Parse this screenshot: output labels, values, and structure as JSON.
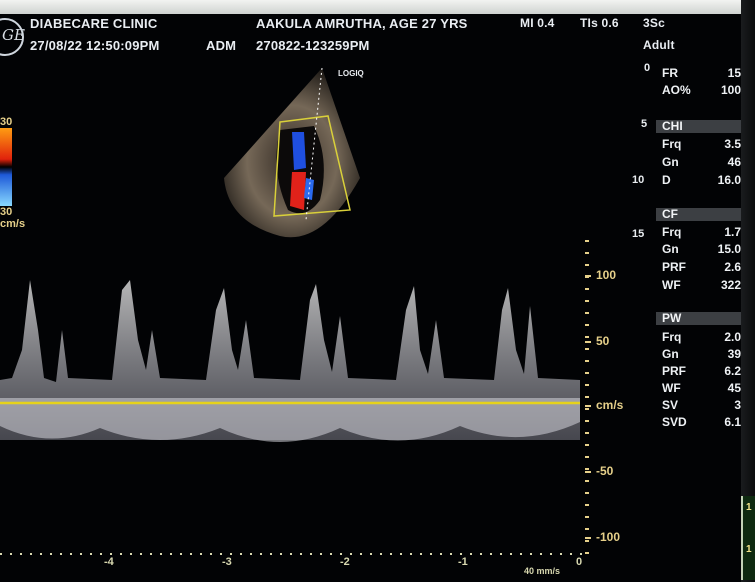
{
  "header": {
    "clinic": "DIABECARE CLINIC",
    "patient": "AAKULA AMRUTHA, AGE 27 YRS",
    "mi": "MI 0.4",
    "tis": "TIs 0.6",
    "probe": "3Sc",
    "datetime": "27/08/22 12:50:09PM",
    "operator": "ADM",
    "exam_id": "270822-123259PM",
    "preset": "Adult",
    "logo_text": "GE"
  },
  "depth_marks": [
    "0",
    "5",
    "10",
    "15"
  ],
  "params": {
    "general": [
      {
        "label": "FR",
        "value": "15"
      },
      {
        "label": "AO%",
        "value": "100"
      }
    ],
    "chi": {
      "title": "CHI",
      "items": [
        {
          "label": "Frq",
          "value": "3.5"
        },
        {
          "label": "Gn",
          "value": "46"
        },
        {
          "label": "D",
          "value": "16.0"
        }
      ]
    },
    "cf": {
      "title": "CF",
      "items": [
        {
          "label": "Frq",
          "value": "1.7"
        },
        {
          "label": "Gn",
          "value": "15.0"
        },
        {
          "label": "PRF",
          "value": "2.6"
        },
        {
          "label": "WF",
          "value": "322"
        }
      ]
    },
    "pw": {
      "title": "PW",
      "items": [
        {
          "label": "Frq",
          "value": "2.0"
        },
        {
          "label": "Gn",
          "value": "39"
        },
        {
          "label": "PRF",
          "value": "6.2"
        },
        {
          "label": "WF",
          "value": "45"
        },
        {
          "label": "SV",
          "value": "3"
        },
        {
          "label": "SVD",
          "value": "6.1"
        }
      ]
    }
  },
  "color_scale": {
    "top": "30",
    "bottom": "30",
    "unit": "cm/s"
  },
  "echo_label": "LOGIQ",
  "doppler": {
    "y_ticks": [
      "100",
      "50",
      "cm/s",
      "-50",
      "-100"
    ],
    "x_ticks": [
      "-4",
      "-3",
      "-2",
      "-1",
      "0"
    ],
    "sweep_speed": "40 mm/s"
  },
  "mini_panel": {
    "top": "1",
    "bottom": "1"
  },
  "colors": {
    "baseline": "#e6d21a",
    "scale": "#e6d08a",
    "text": "#e9edf2",
    "panel": "#3c3f43"
  }
}
